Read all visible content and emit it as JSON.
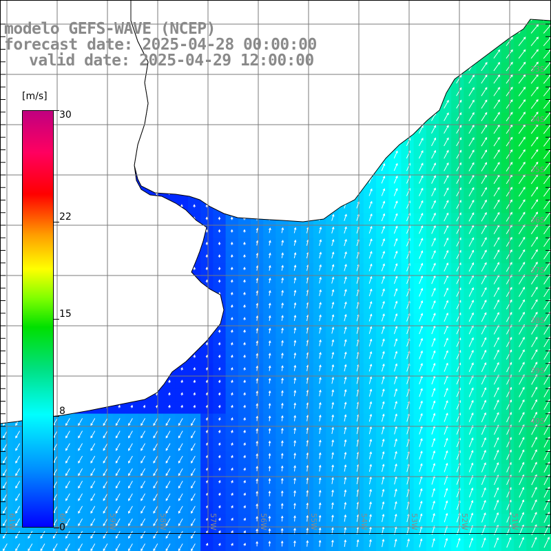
{
  "title": {
    "line1": "modelo GEFS-WAVE (NCEP)",
    "line2": "forecast date: 2025-04-28 00:00:00",
    "line3": "valid date: 2025-04-29 12:00:00"
  },
  "colorbar": {
    "unit": "[m/s]",
    "min": 0,
    "max": 30,
    "ticks": [
      "30",
      "22",
      "15",
      "8",
      "0"
    ],
    "tick_values": [
      30,
      22,
      15,
      8,
      0
    ]
  },
  "axes": {
    "lon_labels": [
      "61W",
      "60W",
      "59W",
      "58W",
      "57W",
      "56W",
      "55W",
      "54W",
      "53W",
      "52W",
      "51W"
    ],
    "lat_labels": [
      "33S",
      "34S",
      "35S",
      "36S",
      "37S",
      "38S",
      "39S",
      "40S"
    ]
  },
  "colors": {
    "land": "#ffffff",
    "coast": "#000000",
    "grid": "#7a7a7a",
    "arrow": "#ffffff"
  }
}
